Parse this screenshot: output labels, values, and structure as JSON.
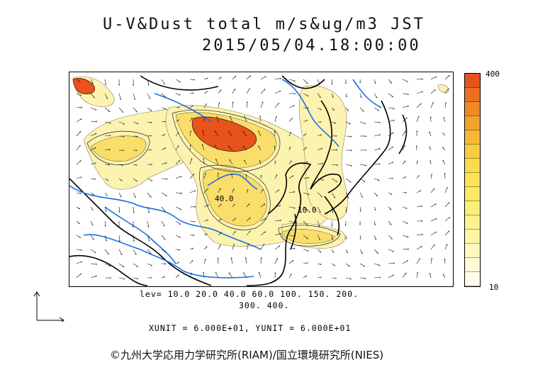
{
  "title": {
    "line1": "U-V&Dust total m/s&ug/m3 JST",
    "line2": "2015/05/04.18:00:00"
  },
  "colorbar": {
    "max_label": "400",
    "min_label": "10",
    "colors": [
      "#e8531d",
      "#ed6f21",
      "#f08a26",
      "#f3a22d",
      "#f6b836",
      "#f8cc40",
      "#fadb4c",
      "#fbe35a",
      "#fce968",
      "#fdee7b",
      "#fef28f",
      "#fef6a6",
      "#fff9bf",
      "#fffbd7",
      "#fffde9"
    ]
  },
  "contour_labels": [
    "40.0",
    "10.0"
  ],
  "levels": {
    "line1": "lev= 10.0 20.0 40.0 60.0 100. 150. 200.",
    "line2": "300. 400."
  },
  "units": "XUNIT = 6.000E+01, YUNIT = 6.000E+01",
  "credit": "©九州大学応用力学研究所(RIAM)/国立環境研究所(NIES)",
  "map_colors": {
    "coast": "#000000",
    "river": "#1f6fe0",
    "dust_low": "#fdf3b0",
    "dust_mid": "#f9de6a",
    "dust_high": "#e8531d"
  }
}
